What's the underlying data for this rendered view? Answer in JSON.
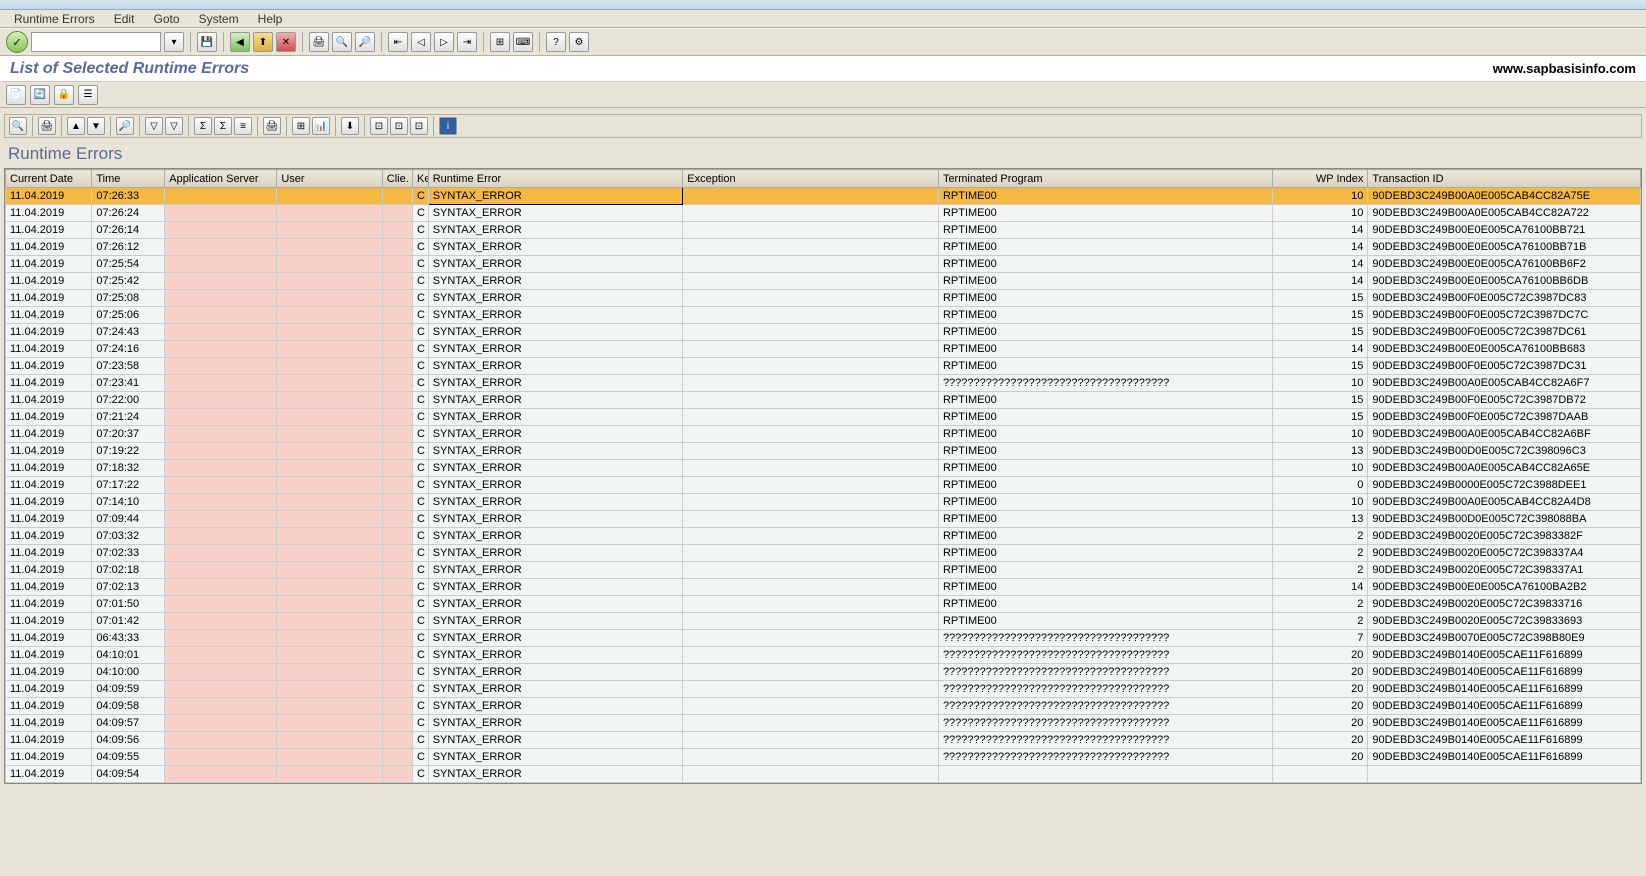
{
  "menubar": [
    "Runtime Errors",
    "Edit",
    "Goto",
    "System",
    "Help"
  ],
  "page_title": "List of Selected Runtime Errors",
  "site_url": "www.sapbasisinfo.com",
  "grid_title": "Runtime Errors",
  "columns": [
    "Current Date",
    "Time",
    "Application Server",
    "User",
    "Clie.",
    "Ke",
    "Runtime Error",
    "Exception",
    "Terminated Program",
    "WP Index",
    "Transaction ID"
  ],
  "rows": [
    {
      "d": "11.04.2019",
      "t": "07:26:33",
      "k": "C",
      "rt": "SYNTAX_ERROR",
      "tp": "RPTIME00",
      "wp": "10",
      "tid": "90DEBD3C249B00A0E005CAB4CC82A75E",
      "sel": true
    },
    {
      "d": "11.04.2019",
      "t": "07:26:24",
      "k": "C",
      "rt": "SYNTAX_ERROR",
      "tp": "RPTIME00",
      "wp": "10",
      "tid": "90DEBD3C249B00A0E005CAB4CC82A722"
    },
    {
      "d": "11.04.2019",
      "t": "07:26:14",
      "k": "C",
      "rt": "SYNTAX_ERROR",
      "tp": "RPTIME00",
      "wp": "14",
      "tid": "90DEBD3C249B00E0E005CA76100BB721"
    },
    {
      "d": "11.04.2019",
      "t": "07:26:12",
      "k": "C",
      "rt": "SYNTAX_ERROR",
      "tp": "RPTIME00",
      "wp": "14",
      "tid": "90DEBD3C249B00E0E005CA76100BB71B"
    },
    {
      "d": "11.04.2019",
      "t": "07:25:54",
      "k": "C",
      "rt": "SYNTAX_ERROR",
      "tp": "RPTIME00",
      "wp": "14",
      "tid": "90DEBD3C249B00E0E005CA76100BB6F2"
    },
    {
      "d": "11.04.2019",
      "t": "07:25:42",
      "k": "C",
      "rt": "SYNTAX_ERROR",
      "tp": "RPTIME00",
      "wp": "14",
      "tid": "90DEBD3C249B00E0E005CA76100BB6DB"
    },
    {
      "d": "11.04.2019",
      "t": "07:25:08",
      "k": "C",
      "rt": "SYNTAX_ERROR",
      "tp": "RPTIME00",
      "wp": "15",
      "tid": "90DEBD3C249B00F0E005C72C3987DC83"
    },
    {
      "d": "11.04.2019",
      "t": "07:25:06",
      "k": "C",
      "rt": "SYNTAX_ERROR",
      "tp": "RPTIME00",
      "wp": "15",
      "tid": "90DEBD3C249B00F0E005C72C3987DC7C"
    },
    {
      "d": "11.04.2019",
      "t": "07:24:43",
      "k": "C",
      "rt": "SYNTAX_ERROR",
      "tp": "RPTIME00",
      "wp": "15",
      "tid": "90DEBD3C249B00F0E005C72C3987DC61"
    },
    {
      "d": "11.04.2019",
      "t": "07:24:16",
      "k": "C",
      "rt": "SYNTAX_ERROR",
      "tp": "RPTIME00",
      "wp": "14",
      "tid": "90DEBD3C249B00E0E005CA76100BB683"
    },
    {
      "d": "11.04.2019",
      "t": "07:23:58",
      "k": "C",
      "rt": "SYNTAX_ERROR",
      "tp": "RPTIME00",
      "wp": "15",
      "tid": "90DEBD3C249B00F0E005C72C3987DC31"
    },
    {
      "d": "11.04.2019",
      "t": "07:23:41",
      "k": "C",
      "rt": "SYNTAX_ERROR",
      "tp": "?????????????????????????????????????",
      "wp": "10",
      "tid": "90DEBD3C249B00A0E005CAB4CC82A6F7"
    },
    {
      "d": "11.04.2019",
      "t": "07:22:00",
      "k": "C",
      "rt": "SYNTAX_ERROR",
      "tp": "RPTIME00",
      "wp": "15",
      "tid": "90DEBD3C249B00F0E005C72C3987DB72"
    },
    {
      "d": "11.04.2019",
      "t": "07:21:24",
      "k": "C",
      "rt": "SYNTAX_ERROR",
      "tp": "RPTIME00",
      "wp": "15",
      "tid": "90DEBD3C249B00F0E005C72C3987DAAB"
    },
    {
      "d": "11.04.2019",
      "t": "07:20:37",
      "k": "C",
      "rt": "SYNTAX_ERROR",
      "tp": "RPTIME00",
      "wp": "10",
      "tid": "90DEBD3C249B00A0E005CAB4CC82A6BF"
    },
    {
      "d": "11.04.2019",
      "t": "07:19:22",
      "k": "C",
      "rt": "SYNTAX_ERROR",
      "tp": "RPTIME00",
      "wp": "13",
      "tid": "90DEBD3C249B00D0E005C72C398096C3"
    },
    {
      "d": "11.04.2019",
      "t": "07:18:32",
      "k": "C",
      "rt": "SYNTAX_ERROR",
      "tp": "RPTIME00",
      "wp": "10",
      "tid": "90DEBD3C249B00A0E005CAB4CC82A65E"
    },
    {
      "d": "11.04.2019",
      "t": "07:17:22",
      "k": "C",
      "rt": "SYNTAX_ERROR",
      "tp": "RPTIME00",
      "wp": "0",
      "tid": "90DEBD3C249B0000E005C72C3988DEE1"
    },
    {
      "d": "11.04.2019",
      "t": "07:14:10",
      "k": "C",
      "rt": "SYNTAX_ERROR",
      "tp": "RPTIME00",
      "wp": "10",
      "tid": "90DEBD3C249B00A0E005CAB4CC82A4D8"
    },
    {
      "d": "11.04.2019",
      "t": "07:09:44",
      "k": "C",
      "rt": "SYNTAX_ERROR",
      "tp": "RPTIME00",
      "wp": "13",
      "tid": "90DEBD3C249B00D0E005C72C398088BA"
    },
    {
      "d": "11.04.2019",
      "t": "07:03:32",
      "k": "C",
      "rt": "SYNTAX_ERROR",
      "tp": "RPTIME00",
      "wp": "2",
      "tid": "90DEBD3C249B0020E005C72C3983382F"
    },
    {
      "d": "11.04.2019",
      "t": "07:02:33",
      "k": "C",
      "rt": "SYNTAX_ERROR",
      "tp": "RPTIME00",
      "wp": "2",
      "tid": "90DEBD3C249B0020E005C72C398337A4"
    },
    {
      "d": "11.04.2019",
      "t": "07:02:18",
      "k": "C",
      "rt": "SYNTAX_ERROR",
      "tp": "RPTIME00",
      "wp": "2",
      "tid": "90DEBD3C249B0020E005C72C398337A1"
    },
    {
      "d": "11.04.2019",
      "t": "07:02:13",
      "k": "C",
      "rt": "SYNTAX_ERROR",
      "tp": "RPTIME00",
      "wp": "14",
      "tid": "90DEBD3C249B00E0E005CA76100BA2B2"
    },
    {
      "d": "11.04.2019",
      "t": "07:01:50",
      "k": "C",
      "rt": "SYNTAX_ERROR",
      "tp": "RPTIME00",
      "wp": "2",
      "tid": "90DEBD3C249B0020E005C72C39833716"
    },
    {
      "d": "11.04.2019",
      "t": "07:01:42",
      "k": "C",
      "rt": "SYNTAX_ERROR",
      "tp": "RPTIME00",
      "wp": "2",
      "tid": "90DEBD3C249B0020E005C72C39833693"
    },
    {
      "d": "11.04.2019",
      "t": "06:43:33",
      "k": "C",
      "rt": "SYNTAX_ERROR",
      "tp": "?????????????????????????????????????",
      "wp": "7",
      "tid": "90DEBD3C249B0070E005C72C398B80E9"
    },
    {
      "d": "11.04.2019",
      "t": "04:10:01",
      "k": "C",
      "rt": "SYNTAX_ERROR",
      "tp": "?????????????????????????????????????",
      "wp": "20",
      "tid": "90DEBD3C249B0140E005CAE11F616899"
    },
    {
      "d": "11.04.2019",
      "t": "04:10:00",
      "k": "C",
      "rt": "SYNTAX_ERROR",
      "tp": "?????????????????????????????????????",
      "wp": "20",
      "tid": "90DEBD3C249B0140E005CAE11F616899"
    },
    {
      "d": "11.04.2019",
      "t": "04:09:59",
      "k": "C",
      "rt": "SYNTAX_ERROR",
      "tp": "?????????????????????????????????????",
      "wp": "20",
      "tid": "90DEBD3C249B0140E005CAE11F616899"
    },
    {
      "d": "11.04.2019",
      "t": "04:09:58",
      "k": "C",
      "rt": "SYNTAX_ERROR",
      "tp": "?????????????????????????????????????",
      "wp": "20",
      "tid": "90DEBD3C249B0140E005CAE11F616899"
    },
    {
      "d": "11.04.2019",
      "t": "04:09:57",
      "k": "C",
      "rt": "SYNTAX_ERROR",
      "tp": "?????????????????????????????????????",
      "wp": "20",
      "tid": "90DEBD3C249B0140E005CAE11F616899"
    },
    {
      "d": "11.04.2019",
      "t": "04:09:56",
      "k": "C",
      "rt": "SYNTAX_ERROR",
      "tp": "?????????????????????????????????????",
      "wp": "20",
      "tid": "90DEBD3C249B0140E005CAE11F616899"
    },
    {
      "d": "11.04.2019",
      "t": "04:09:55",
      "k": "C",
      "rt": "SYNTAX_ERROR",
      "tp": "?????????????????????????????????????",
      "wp": "20",
      "tid": "90DEBD3C249B0140E005CAE11F616899"
    },
    {
      "d": "11.04.2019",
      "t": "04:09:54",
      "k": "C",
      "rt": "SYNTAX_ERROR",
      "tp": "",
      "wp": "",
      "tid": ""
    }
  ],
  "colors": {
    "bg": "#e8e4d8",
    "sel": "#f5b840",
    "pink": "#f8d0c8",
    "cell": "#f0f5f5",
    "title": "#5a6a9a"
  }
}
